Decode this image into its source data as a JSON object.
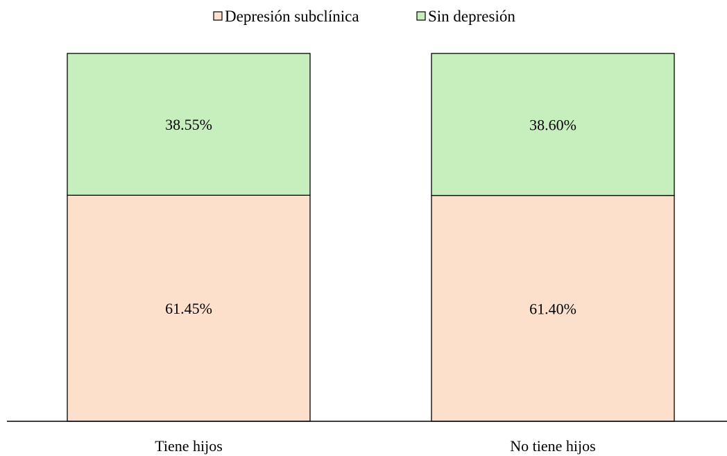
{
  "chart_data": {
    "type": "bar",
    "stacked": true,
    "categories": [
      "Tiene hijos",
      "No tiene hijos"
    ],
    "series": [
      {
        "name": "Depresión subclínica",
        "values": [
          61.45,
          61.4
        ],
        "labels": [
          "61.45%",
          "61.40%"
        ],
        "color": "#FCE0CB"
      },
      {
        "name": "Sin depresión",
        "values": [
          38.55,
          38.6
        ],
        "labels": [
          "38.55%",
          "38.60%"
        ],
        "color": "#C7EFBE"
      }
    ],
    "ylim": [
      0,
      100
    ],
    "grid": false,
    "legend_position": "top"
  }
}
